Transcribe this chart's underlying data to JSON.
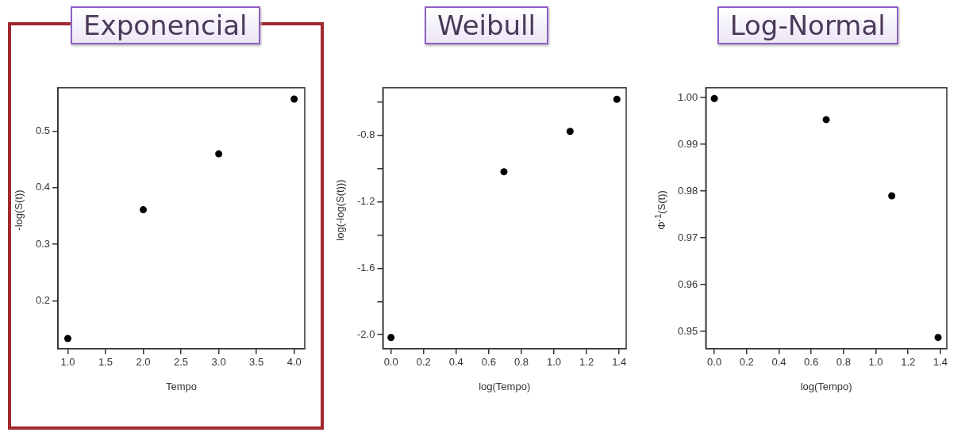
{
  "chart_data": [
    {
      "type": "scatter",
      "title": "Exponencial",
      "xlabel": "Tempo",
      "ylabel": "-log(S(t))",
      "x": [
        1,
        2,
        3,
        4
      ],
      "values": [
        0.133,
        0.361,
        0.46,
        0.557
      ],
      "color": "#000000",
      "marker": "circle",
      "xlim": [
        0.87,
        4.14
      ],
      "ylim": [
        0.115,
        0.577
      ],
      "xticks": [
        {
          "value": 1,
          "label": "1.0"
        },
        1.5,
        {
          "value": 2,
          "label": "2.0"
        },
        2.5,
        {
          "value": 3,
          "label": "3.0"
        },
        3.5,
        {
          "value": 4,
          "label": "4.0"
        }
      ],
      "yticks": [
        0.2,
        0.3,
        0.4,
        0.5
      ]
    },
    {
      "type": "scatter",
      "title": "Weibull",
      "xlabel": "log(Tempo)",
      "ylabel": "log(-log(S(t)))",
      "x": [
        0,
        0.693,
        1.099,
        1.386
      ],
      "values": [
        -2.017,
        -1.019,
        -0.776,
        -0.583
      ],
      "color": "#000000",
      "marker": "circle",
      "xlim": [
        -0.05,
        1.443
      ],
      "ylim": [
        -2.084,
        -0.514
      ],
      "xticks": [
        {
          "value": 0,
          "label": "0.0"
        },
        0.2,
        0.4,
        0.6,
        0.8,
        {
          "value": 1,
          "label": "1.0"
        },
        1.2,
        1.4
      ],
      "yticks": [
        {
          "value": -0.6,
          "label": null
        },
        -0.8,
        {
          "value": -1.0,
          "label": null
        },
        -1.2,
        {
          "value": -1.4,
          "label": null
        },
        -1.6,
        {
          "value": -1.8,
          "label": null
        },
        {
          "value": -2.0,
          "label": "-2.0"
        }
      ]
    },
    {
      "type": "scatter",
      "title": "Log-Normal",
      "xlabel": "log(Tempo)",
      "ylabel": "Φ$^{-1}$(S(t))",
      "x": [
        0,
        0.693,
        1.099,
        1.386
      ],
      "values": [
        0.9998,
        0.9953,
        0.979,
        0.9487
      ],
      "color": "#000000",
      "marker": "circle",
      "xlim": [
        -0.053,
        1.44
      ],
      "ylim": [
        0.9463,
        1.0021
      ],
      "xticks": [
        {
          "value": 0,
          "label": "0.0"
        },
        0.2,
        0.4,
        0.6,
        0.8,
        {
          "value": 1,
          "label": "1.0"
        },
        1.2,
        1.4
      ],
      "yticks": [
        0.95,
        0.96,
        0.97,
        0.98,
        0.99,
        {
          "value": 1,
          "label": "1.00"
        }
      ]
    }
  ]
}
